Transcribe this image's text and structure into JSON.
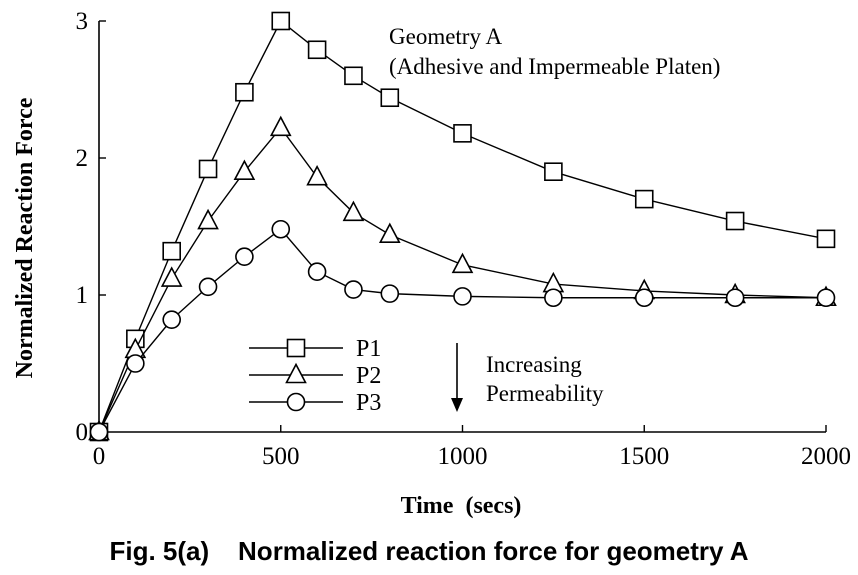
{
  "chart_data": {
    "type": "line",
    "xlabel": "Time  (secs)",
    "ylabel": "Normalized  Reaction  Force",
    "xlim": [
      0,
      2000
    ],
    "ylim": [
      0,
      3
    ],
    "xticks": [
      0,
      500,
      1000,
      1500,
      2000
    ],
    "yticks": [
      0,
      1,
      2,
      3
    ],
    "grid": false,
    "legend_position": "center",
    "annotation_lines": [
      "Geometry A",
      "(Adhesive and Impermeable Platen)"
    ],
    "arrow_label_lines": [
      "Increasing",
      "Permeability"
    ],
    "series": [
      {
        "name": "P1",
        "marker": "square",
        "x": [
          0,
          100,
          200,
          300,
          400,
          500,
          600,
          700,
          800,
          1000,
          1250,
          1500,
          1750,
          2000
        ],
        "y": [
          0,
          0.68,
          1.32,
          1.92,
          2.48,
          3.0,
          2.79,
          2.6,
          2.44,
          2.18,
          1.9,
          1.7,
          1.54,
          1.41
        ]
      },
      {
        "name": "P2",
        "marker": "triangle",
        "x": [
          0,
          100,
          200,
          300,
          400,
          500,
          600,
          700,
          800,
          1000,
          1250,
          1500,
          1750,
          2000
        ],
        "y": [
          0,
          0.6,
          1.12,
          1.54,
          1.9,
          2.22,
          1.86,
          1.6,
          1.44,
          1.22,
          1.08,
          1.03,
          1.0,
          0.98
        ]
      },
      {
        "name": "P3",
        "marker": "circle",
        "x": [
          0,
          100,
          200,
          300,
          400,
          500,
          600,
          700,
          800,
          1000,
          1250,
          1500,
          1750,
          2000
        ],
        "y": [
          0,
          0.5,
          0.82,
          1.06,
          1.28,
          1.48,
          1.17,
          1.04,
          1.01,
          0.99,
          0.98,
          0.98,
          0.98,
          0.98
        ]
      }
    ]
  },
  "caption": "Fig. 5(a)    Normalized reaction force for geometry A"
}
